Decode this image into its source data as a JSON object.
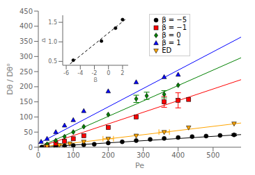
{
  "chart_data": [
    {
      "type": "scatter",
      "xlabel": "Pe",
      "ylabel": "Dθ / Dθ⁰",
      "xlim": [
        0,
        580
      ],
      "ylim": [
        0,
        450
      ],
      "xticks": [
        0,
        100,
        200,
        300,
        400,
        500
      ],
      "yticks": [
        0,
        50,
        100,
        150,
        200,
        250,
        300,
        350,
        400,
        450
      ],
      "grid": false,
      "legend": "upper right",
      "series": [
        {
          "name": "β = −5",
          "color": "black",
          "marker": "circle",
          "x": [
            10,
            25,
            50,
            75,
            100,
            130,
            160,
            200,
            240,
            280,
            320,
            360,
            400,
            440,
            480,
            520,
            560
          ],
          "values": [
            0.5,
            1,
            2,
            4,
            6,
            8,
            10,
            14,
            18,
            22,
            26,
            29,
            32,
            35,
            37,
            39,
            41
          ],
          "yerr": [
            0,
            0,
            0,
            0,
            0,
            0,
            0,
            0,
            0,
            0,
            0,
            0,
            0,
            0,
            0,
            0,
            3
          ],
          "xerr": [
            0,
            0,
            0,
            0,
            0,
            0,
            0,
            0,
            0,
            0,
            0,
            0,
            0,
            0,
            0,
            0,
            0
          ],
          "fit_line": {
            "x": [
              0,
              580
            ],
            "y": [
              0,
              41.76
            ]
          }
        },
        {
          "name": "β = −1",
          "color": "red",
          "marker": "square",
          "x": [
            25,
            50,
            75,
            100,
            130,
            200,
            280,
            360,
            400,
            430
          ],
          "values": [
            5,
            12,
            20,
            28,
            38,
            65,
            100,
            150,
            155,
            158
          ],
          "yerr": [
            0,
            0,
            0,
            0,
            0,
            0,
            0,
            18,
            25,
            0
          ],
          "xerr": [
            0,
            0,
            0,
            0,
            0,
            0,
            0,
            0,
            0,
            0
          ],
          "fit_line": {
            "x": [
              0,
              580
            ],
            "y": [
              0,
              223.3
            ]
          }
        },
        {
          "name": "β = 0",
          "color": "green",
          "marker": "diamond",
          "x": [
            25,
            50,
            75,
            100,
            130,
            200,
            280,
            310,
            360,
            400
          ],
          "values": [
            10,
            22,
            35,
            50,
            68,
            108,
            160,
            170,
            175,
            205
          ],
          "yerr": [
            0,
            0,
            0,
            0,
            0,
            0,
            12,
            12,
            12,
            0
          ],
          "xerr": [
            0,
            0,
            0,
            0,
            0,
            0,
            0,
            0,
            0,
            0
          ],
          "fit_line": {
            "x": [
              0,
              580
            ],
            "y": [
              0,
              295.8
            ]
          }
        },
        {
          "name": "β = 1",
          "color": "blue",
          "marker": "triangle_up",
          "x": [
            8,
            25,
            50,
            75,
            100,
            130,
            200,
            280,
            360,
            400
          ],
          "values": [
            18,
            28,
            50,
            72,
            90,
            120,
            185,
            215,
            232,
            240
          ],
          "yerr": [
            0,
            0,
            0,
            0,
            0,
            0,
            0,
            0,
            0,
            0
          ],
          "xerr": [
            0,
            0,
            0,
            0,
            0,
            0,
            0,
            0,
            0,
            0
          ],
          "fit_line": {
            "x": [
              0,
              580
            ],
            "y": [
              12,
              364.06
            ]
          }
        },
        {
          "name": "ED",
          "color": "orange",
          "marker": "triangle_down",
          "x": [
            25,
            60,
            90,
            130,
            200,
            280,
            360,
            430,
            560
          ],
          "values": [
            3,
            7,
            12,
            18,
            28,
            38,
            50,
            65,
            78
          ],
          "yerr": [
            0,
            0,
            0,
            0,
            0,
            0,
            0,
            0,
            0
          ],
          "xerr": [
            0,
            15,
            0,
            0,
            15,
            0,
            15,
            0,
            0
          ],
          "fit_line": {
            "x": [
              0,
              580
            ],
            "y": [
              0,
              80.04
            ]
          }
        }
      ]
    },
    {
      "type": "scatter",
      "xlabel": "β",
      "ylabel": "Δ",
      "xlim": [
        -6.5,
        2.8
      ],
      "ylim": [
        0.4,
        1.68
      ],
      "xticks": [
        -6,
        -4,
        -2,
        0,
        2
      ],
      "yticks": [
        0.5,
        {
          "value": 1.0,
          "label": "1.0"
        },
        1.5
      ],
      "color": "black",
      "marker": "circle",
      "x": [
        -5,
        -1,
        1,
        2
      ],
      "values": [
        0.53,
        1.02,
        1.35,
        1.57
      ],
      "fit_line": {
        "x": [
          -6,
          2.5
        ],
        "y": [
          0.355565,
          1.589174
        ],
        "color": "black",
        "line_style": "dashed"
      }
    }
  ]
}
